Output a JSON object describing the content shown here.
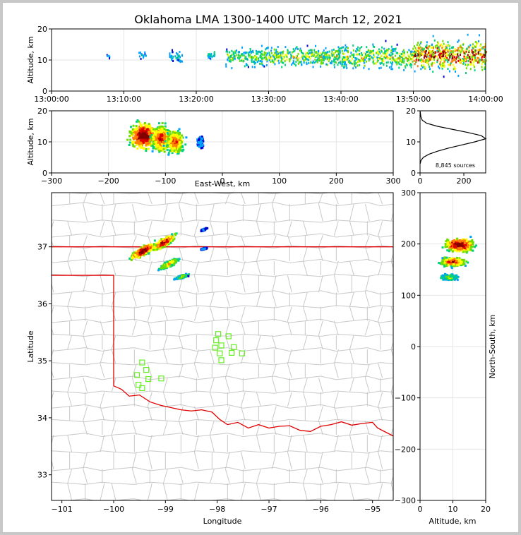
{
  "title": "Oklahoma LMA 1300-1400 UTC March 12, 2021",
  "colors": {
    "density": [
      "#0000cc",
      "#00a0ff",
      "#00d080",
      "#6fdc00",
      "#ffff00",
      "#ff8000",
      "#e00000",
      "#800000"
    ],
    "state_border": "#e00000",
    "county_lines": "#c8c8c8",
    "stations": "#66ee22",
    "profile": "#000000"
  },
  "chart_data": [
    {
      "id": "time-altitude",
      "type": "heatmap",
      "ylabel": "Altitude, km",
      "ylim": [
        0,
        20
      ],
      "yticks": [
        "0",
        "10",
        "20"
      ],
      "xticks": [
        "13:00:00",
        "13:10:00",
        "13:20:00",
        "13:30:00",
        "13:40:00",
        "13:50:00",
        "14:00:00"
      ],
      "xlim_minutes": [
        0,
        60
      ],
      "clusters": [
        {
          "start_min": 7.5,
          "end_min": 8,
          "alt_min": 10,
          "alt_max": 12,
          "density": 0.2
        },
        {
          "start_min": 12,
          "end_min": 13,
          "alt_min": 9,
          "alt_max": 14,
          "density": 0.25
        },
        {
          "start_min": 16,
          "end_min": 18,
          "alt_min": 8,
          "alt_max": 14,
          "density": 0.3
        },
        {
          "start_min": 21.5,
          "end_min": 22.5,
          "alt_min": 9,
          "alt_max": 14,
          "density": 0.35
        },
        {
          "start_min": 24,
          "end_min": 30,
          "alt_min": 6,
          "alt_max": 16,
          "density": 0.5
        },
        {
          "start_min": 30,
          "end_min": 40,
          "alt_min": 6,
          "alt_max": 16,
          "density": 0.55
        },
        {
          "start_min": 40,
          "end_min": 50,
          "alt_min": 5,
          "alt_max": 17,
          "density": 0.6
        },
        {
          "start_min": 50,
          "end_min": 60,
          "alt_min": 4,
          "alt_max": 19,
          "density": 0.9
        }
      ]
    },
    {
      "id": "east-west-altitude",
      "type": "heatmap",
      "xlabel": "East-West, km",
      "ylabel": "Altitude, km",
      "xlim": [
        -300,
        300
      ],
      "ylim": [
        0,
        20
      ],
      "xticks": [
        "−300",
        "−200",
        "−100",
        "0",
        "100",
        "200",
        "300"
      ],
      "yticks": [
        "0",
        "10",
        "20"
      ],
      "cores": [
        {
          "x": -140,
          "z": 12,
          "spread_x": 22,
          "spread_z": 4,
          "intensity": 1.0
        },
        {
          "x": -110,
          "z": 11,
          "spread_x": 16,
          "spread_z": 4,
          "intensity": 0.85
        },
        {
          "x": -85,
          "z": 10,
          "spread_x": 14,
          "spread_z": 3.5,
          "intensity": 0.8
        },
        {
          "x": -40,
          "z": 10,
          "spread_x": 6,
          "spread_z": 2,
          "intensity": 0.2
        }
      ]
    },
    {
      "id": "altitude-histogram",
      "type": "line",
      "annotation": "8,845 sources",
      "xlim": [
        0,
        300
      ],
      "ylim": [
        0,
        20
      ],
      "xticks": [
        "0",
        "200"
      ],
      "yticks": [
        "0",
        "10",
        "20"
      ],
      "profile": [
        {
          "z": 3,
          "n": 1
        },
        {
          "z": 4,
          "n": 4
        },
        {
          "z": 5,
          "n": 15
        },
        {
          "z": 6,
          "n": 40
        },
        {
          "z": 7,
          "n": 80
        },
        {
          "z": 8,
          "n": 130
        },
        {
          "z": 9,
          "n": 190
        },
        {
          "z": 10,
          "n": 250
        },
        {
          "z": 11,
          "n": 300
        },
        {
          "z": 12,
          "n": 280
        },
        {
          "z": 13,
          "n": 220
        },
        {
          "z": 14,
          "n": 150
        },
        {
          "z": 15,
          "n": 80
        },
        {
          "z": 16,
          "n": 30
        },
        {
          "z": 17,
          "n": 10
        },
        {
          "z": 18,
          "n": 4
        },
        {
          "z": 19,
          "n": 2
        },
        {
          "z": 20,
          "n": 0
        }
      ]
    },
    {
      "id": "plan-view",
      "type": "heatmap",
      "xlabel": "Longitude",
      "ylabel": "Latitude",
      "xlim": [
        -101.2,
        -94.6
      ],
      "ylim": [
        32.55,
        37.95
      ],
      "xticks": [
        "−101",
        "−100",
        "−99",
        "−98",
        "−97",
        "−96",
        "−95"
      ],
      "yticks": [
        "33",
        "34",
        "35",
        "36",
        "37"
      ],
      "cells": [
        {
          "lon_min": -99.7,
          "lon_max": -99.2,
          "lat_min": 36.7,
          "lat_max": 37.15,
          "intensity": 1.0
        },
        {
          "lon_min": -99.3,
          "lon_max": -98.8,
          "lat_min": 36.85,
          "lat_max": 37.3,
          "intensity": 0.9
        },
        {
          "lon_min": -99.15,
          "lon_max": -98.75,
          "lat_min": 36.55,
          "lat_max": 36.85,
          "intensity": 0.7
        },
        {
          "lon_min": -98.85,
          "lon_max": -98.55,
          "lat_min": 36.4,
          "lat_max": 36.55,
          "intensity": 0.5
        },
        {
          "lon_min": -98.35,
          "lon_max": -98.2,
          "lat_min": 37.25,
          "lat_max": 37.35,
          "intensity": 0.15
        },
        {
          "lon_min": -98.35,
          "lon_max": -98.2,
          "lat_min": 36.93,
          "lat_max": 37.0,
          "intensity": 0.15
        }
      ],
      "stations": [
        {
          "lon": -99.55,
          "lat": 34.75
        },
        {
          "lon": -99.45,
          "lat": 34.97
        },
        {
          "lon": -99.37,
          "lat": 34.84
        },
        {
          "lon": -99.33,
          "lat": 34.68
        },
        {
          "lon": -99.52,
          "lat": 34.58
        },
        {
          "lon": -99.45,
          "lat": 34.52
        },
        {
          "lon": -99.08,
          "lat": 34.69
        },
        {
          "lon": -97.98,
          "lat": 35.47
        },
        {
          "lon": -98.02,
          "lat": 35.36
        },
        {
          "lon": -98.04,
          "lat": 35.23
        },
        {
          "lon": -97.92,
          "lat": 35.27
        },
        {
          "lon": -97.78,
          "lat": 35.43
        },
        {
          "lon": -97.68,
          "lat": 35.24
        },
        {
          "lon": -97.72,
          "lat": 35.14
        },
        {
          "lon": -97.52,
          "lat": 35.13
        },
        {
          "lon": -97.95,
          "lat": 35.13
        },
        {
          "lon": -97.92,
          "lat": 35.01
        }
      ]
    },
    {
      "id": "north-south-altitude",
      "type": "heatmap",
      "xlabel": "Altitude, km",
      "ylabel": "North-South, km",
      "xlim": [
        0,
        20
      ],
      "ylim": [
        -300,
        300
      ],
      "xticks": [
        "0",
        "10",
        "20"
      ],
      "yticks": [
        "−300",
        "−200",
        "−100",
        "0",
        "100",
        "200",
        "300"
      ],
      "cores": [
        {
          "z": 12,
          "y": 198,
          "spread_z": 4,
          "spread_y": 12,
          "intensity": 1.0
        },
        {
          "z": 10,
          "y": 165,
          "spread_z": 3.5,
          "spread_y": 8,
          "intensity": 0.85
        },
        {
          "z": 9,
          "y": 135,
          "spread_z": 2.5,
          "spread_y": 5,
          "intensity": 0.5
        }
      ]
    }
  ]
}
